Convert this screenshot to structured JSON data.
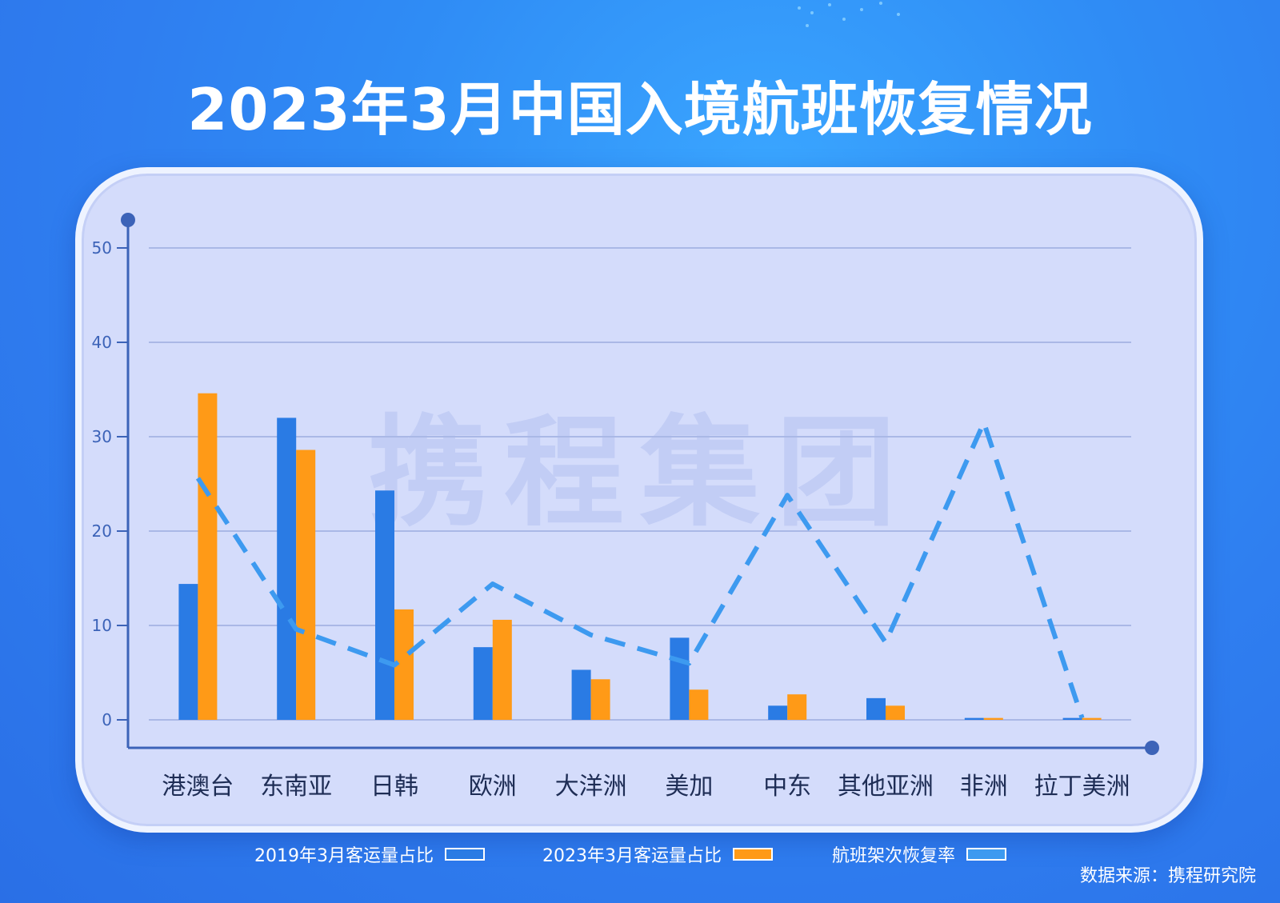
{
  "title": "2023年3月中国入境航班恢复情况",
  "watermark": "携程集团",
  "source": "数据来源：携程研究院",
  "colors": {
    "series2019": "#2a7be4",
    "series2023": "#ff9a17",
    "recovery": "#3d9af0",
    "axis": "#3c63b8",
    "grid": "#aab8e6"
  },
  "chart_data": {
    "type": "bar",
    "categories": [
      "港澳台",
      "东南亚",
      "日韩",
      "欧洲",
      "大洋洲",
      "美加",
      "中东",
      "其他亚洲",
      "非洲",
      "拉丁美洲"
    ],
    "series": [
      {
        "name": "2019年3月客运量占比",
        "type": "bar",
        "values": [
          14.4,
          32.0,
          24.3,
          7.7,
          5.3,
          8.7,
          1.5,
          2.3,
          0.2,
          0.2
        ]
      },
      {
        "name": "2023年3月客运量占比",
        "type": "bar",
        "values": [
          34.6,
          28.6,
          11.7,
          10.6,
          4.3,
          3.2,
          2.7,
          1.5,
          0.2,
          0.2
        ]
      },
      {
        "name": "航班架次恢复率",
        "type": "line",
        "style": "dashed",
        "values": [
          25.6,
          9.6,
          5.8,
          14.4,
          9.0,
          6.0,
          23.8,
          8.2,
          31.5,
          0.2
        ]
      }
    ],
    "yticks": [
      0,
      10,
      20,
      30,
      40,
      50
    ],
    "ylim": [
      0,
      52
    ],
    "grid": true,
    "legend_position": "bottom"
  }
}
